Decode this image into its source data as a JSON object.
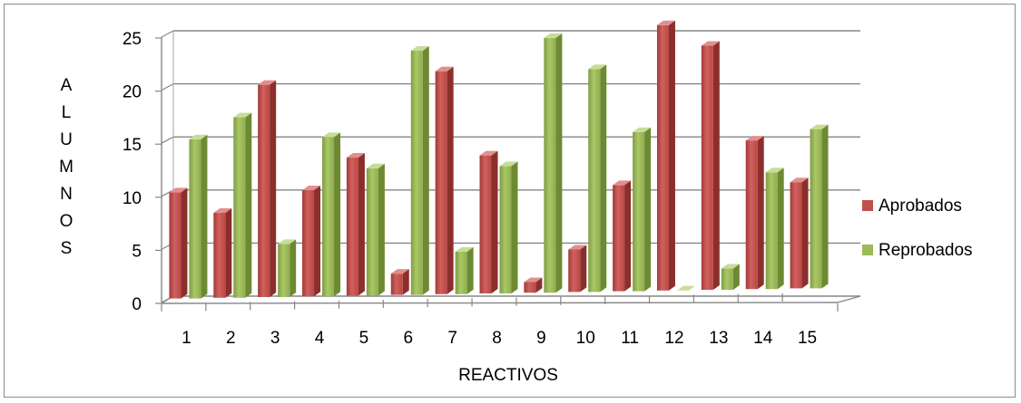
{
  "chart_data": {
    "type": "bar",
    "title": "",
    "xlabel": "REACTIVOS",
    "ylabel": "ALUMNOS",
    "categories": [
      "1",
      "2",
      "3",
      "4",
      "5",
      "6",
      "7",
      "8",
      "9",
      "10",
      "11",
      "12",
      "13",
      "14",
      "15"
    ],
    "ylim": [
      0,
      25
    ],
    "yticks": [
      0,
      5,
      10,
      15,
      20,
      25
    ],
    "grid": true,
    "legend_position": "right",
    "series": [
      {
        "name": "Aprobados",
        "color": "#c0504d",
        "values": [
          10,
          8,
          20,
          10,
          13,
          2,
          21,
          13,
          1,
          4,
          10,
          25,
          23,
          14,
          10
        ]
      },
      {
        "name": "Reprobados",
        "color": "#9bbb59",
        "values": [
          15,
          17,
          5,
          15,
          12,
          23,
          4,
          12,
          24,
          21,
          15,
          0,
          2,
          11,
          15
        ]
      }
    ]
  }
}
